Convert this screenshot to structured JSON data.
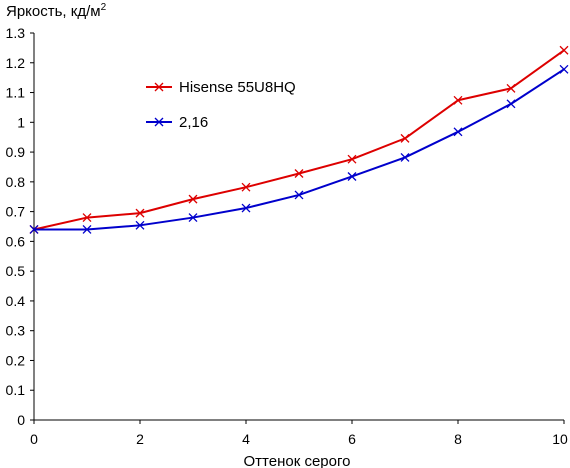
{
  "chart_data": {
    "type": "line",
    "ylabel_main": "Яркость, кд/м",
    "ylabel_sup": "2",
    "xlabel": "Оттенок серого",
    "xlim": [
      0,
      10
    ],
    "ylim": [
      0,
      1.3
    ],
    "x_ticks": [
      {
        "value": 0,
        "label": "0"
      },
      {
        "value": 2,
        "label": "2"
      },
      {
        "value": 4,
        "label": "4"
      },
      {
        "value": 6,
        "label": "6"
      },
      {
        "value": 8,
        "label": "8"
      },
      {
        "value": 10,
        "label": "10"
      }
    ],
    "y_ticks": [
      {
        "value": 0,
        "label": "0"
      },
      {
        "value": 0.1,
        "label": "0.1"
      },
      {
        "value": 0.2,
        "label": "0.2"
      },
      {
        "value": 0.3,
        "label": "0.3"
      },
      {
        "value": 0.4,
        "label": "0.4"
      },
      {
        "value": 0.5,
        "label": "0.5"
      },
      {
        "value": 0.6,
        "label": "0.6"
      },
      {
        "value": 0.7,
        "label": "0.7"
      },
      {
        "value": 0.8,
        "label": "0.8"
      },
      {
        "value": 0.9,
        "label": "0.9"
      },
      {
        "value": 1.0,
        "label": "1"
      },
      {
        "value": 1.1,
        "label": "1.1"
      },
      {
        "value": 1.2,
        "label": "1.2"
      },
      {
        "value": 1.3,
        "label": "1.3"
      }
    ],
    "grid": false,
    "legend_position": "upper-left-center",
    "x": [
      0,
      1,
      2,
      3,
      4,
      5,
      6,
      7,
      8,
      9,
      10
    ],
    "series": [
      {
        "name": "Hisense 55U8HQ",
        "color": "#dd0000",
        "marker": "x",
        "values": [
          0.64,
          0.68,
          0.695,
          0.742,
          0.782,
          0.828,
          0.876,
          0.946,
          1.074,
          1.114,
          1.242
        ]
      },
      {
        "name": "2,16",
        "color": "#0000cc",
        "marker": "x",
        "values": [
          0.64,
          0.64,
          0.654,
          0.68,
          0.712,
          0.756,
          0.818,
          0.882,
          0.968,
          1.062,
          1.178
        ]
      }
    ]
  }
}
